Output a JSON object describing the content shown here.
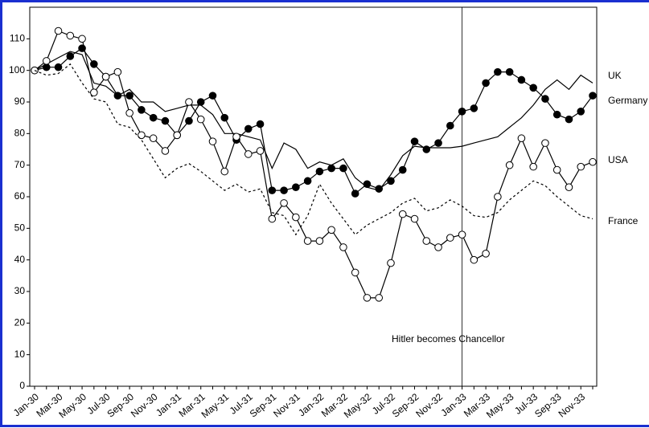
{
  "chart_data": {
    "type": "line",
    "categories": [
      "Jan-30",
      null,
      "Mar-30",
      null,
      "May-30",
      null,
      "Jul-30",
      null,
      "Sep-30",
      null,
      "Nov-30",
      null,
      "Jan-31",
      null,
      "Mar-31",
      null,
      "May-31",
      null,
      "Jul-31",
      null,
      "Sep-31",
      null,
      "Nov-31",
      null,
      "Jan-32",
      null,
      "Mar-32",
      null,
      "May-32",
      null,
      "Jul-32",
      null,
      "Sep-32",
      null,
      "Nov-32",
      null,
      "Jan-33",
      null,
      "Mar-33",
      null,
      "May-33",
      null,
      "Jul-33",
      null,
      "Sep-33",
      null,
      "Nov-33",
      null
    ],
    "ylim": [
      0,
      120
    ],
    "yticks": [
      0,
      10,
      20,
      30,
      40,
      50,
      60,
      70,
      80,
      90,
      100,
      110
    ],
    "series": [
      {
        "name": "UK",
        "color": "#000000",
        "marker": "none",
        "dashed": false,
        "values": [
          100,
          102,
          104,
          106,
          105,
          96,
          95,
          92,
          94,
          90,
          90,
          87,
          88,
          89,
          89,
          86,
          80,
          80,
          79,
          78,
          69,
          77,
          75,
          69,
          71,
          70,
          72,
          66,
          63,
          62,
          67,
          73,
          76,
          75.5,
          75.5,
          75.5,
          76,
          77,
          78,
          79,
          82,
          85,
          89,
          94,
          97,
          94,
          98.5,
          96
        ]
      },
      {
        "name": "Germany",
        "color": "#000000",
        "marker": "filled",
        "dashed": false,
        "values": [
          100,
          101,
          101,
          104.5,
          107,
          102,
          98,
          92,
          92,
          87.5,
          85,
          84,
          79.5,
          84,
          90,
          92,
          85,
          78,
          81.5,
          83,
          62,
          62,
          63,
          65,
          68,
          69,
          69,
          61,
          64,
          62.5,
          65,
          68.5,
          77.5,
          75,
          77,
          82.5,
          87,
          88,
          96,
          99.5,
          99.5,
          97,
          94.5,
          91,
          86,
          84.5,
          87,
          92
        ]
      },
      {
        "name": "USA",
        "color": "#000000",
        "marker": "open",
        "dashed": false,
        "values": [
          100,
          103,
          112.5,
          111,
          110,
          93,
          98,
          99.5,
          86.5,
          79.5,
          78.5,
          74.5,
          79.5,
          90,
          84.5,
          77.5,
          68,
          79,
          73.5,
          74.5,
          53,
          58,
          53.5,
          46,
          46,
          49.5,
          44,
          36,
          28,
          28,
          39,
          54.5,
          53,
          46,
          44,
          47,
          48,
          40,
          42,
          60,
          70,
          78.5,
          69.5,
          77,
          68.5,
          63,
          69.5,
          71
        ]
      },
      {
        "name": "France",
        "color": "#000000",
        "marker": "none",
        "dashed": true,
        "values": [
          100,
          98.5,
          99,
          102,
          96,
          91,
          90,
          83,
          82,
          78,
          72,
          66,
          69,
          70.5,
          68,
          65,
          62,
          64,
          61.5,
          62.5,
          55,
          54,
          48,
          54,
          64,
          58,
          53,
          48,
          51,
          53,
          55,
          58,
          59.5,
          55.5,
          56.5,
          59,
          57,
          54,
          53.5,
          55,
          59,
          62,
          65,
          63.5,
          60,
          57,
          54,
          53
        ]
      }
    ],
    "annotation": {
      "text": "Hitler becomes Chancellor",
      "at": "Jan-33"
    }
  }
}
